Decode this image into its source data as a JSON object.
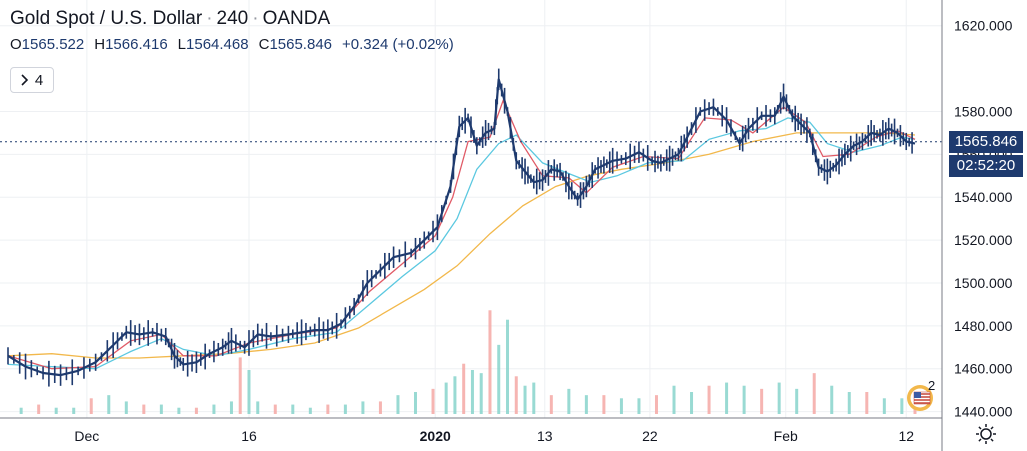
{
  "header": {
    "symbol": "Gold Spot / U.S. Dollar",
    "interval": "240",
    "source": "OANDA",
    "separator": "·"
  },
  "ohlc": {
    "open_label": "O",
    "open": "1565.522",
    "high_label": "H",
    "high": "1566.416",
    "low_label": "L",
    "low": "1564.468",
    "close_label": "C",
    "close": "1565.846",
    "change": "+0.324 (+0.02%)"
  },
  "indicators_toggle": {
    "icon": "chevron-right-icon",
    "count": "4"
  },
  "price_axis": {
    "ticks": [
      "1620.000",
      "1580.000",
      "1560.000",
      "1540.000",
      "1520.000",
      "1500.000",
      "1480.000",
      "1460.000",
      "1440.000"
    ],
    "current_price": "1565.846",
    "countdown": "02:52:20"
  },
  "time_axis": {
    "ticks": [
      "Dec",
      "16",
      "2020",
      "13",
      "22",
      "Feb",
      "12"
    ]
  },
  "events_badge": {
    "count": "2",
    "icon": "us-flag-icon"
  },
  "colors": {
    "candle": "#1e3a6e",
    "ma_fast": "#e05a66",
    "ma_mid": "#5bc8e0",
    "ma_slow": "#f2b84b",
    "volume_up": "#7fd1c8",
    "volume_down": "#f4a39f",
    "price_tag": "#1e3a6e",
    "grid": "#eef0f3"
  },
  "chart_data": {
    "type": "line",
    "chart_type_detail": "candlestick with moving averages and volume",
    "ylim": [
      1437,
      1632
    ],
    "y_ticks": [
      1620,
      1580,
      1560,
      1540,
      1520,
      1500,
      1480,
      1460,
      1440
    ],
    "x_tick_labels": [
      "Dec",
      "16",
      "2020",
      "13",
      "22",
      "Feb",
      "12"
    ],
    "x_tick_index": [
      36,
      110,
      195,
      245,
      293,
      355,
      410
    ],
    "current_price": 1565.846,
    "grid": true,
    "candles_close": [
      [
        0,
        1466
      ],
      [
        8,
        1461
      ],
      [
        16,
        1458
      ],
      [
        24,
        1457
      ],
      [
        32,
        1459
      ],
      [
        40,
        1463
      ],
      [
        48,
        1471
      ],
      [
        54,
        1477
      ],
      [
        60,
        1476
      ],
      [
        66,
        1477
      ],
      [
        72,
        1475
      ],
      [
        76,
        1466
      ],
      [
        80,
        1462
      ],
      [
        86,
        1463
      ],
      [
        92,
        1467
      ],
      [
        98,
        1470
      ],
      [
        102,
        1473
      ],
      [
        108,
        1470
      ],
      [
        114,
        1476
      ],
      [
        120,
        1475
      ],
      [
        128,
        1476
      ],
      [
        134,
        1477
      ],
      [
        140,
        1478
      ],
      [
        146,
        1478
      ],
      [
        152,
        1481
      ],
      [
        158,
        1489
      ],
      [
        164,
        1500
      ],
      [
        170,
        1506
      ],
      [
        176,
        1512
      ],
      [
        184,
        1514
      ],
      [
        190,
        1520
      ],
      [
        196,
        1526
      ],
      [
        202,
        1545
      ],
      [
        206,
        1573
      ],
      [
        210,
        1577
      ],
      [
        214,
        1564
      ],
      [
        218,
        1570
      ],
      [
        222,
        1572
      ],
      [
        224,
        1595
      ],
      [
        228,
        1580
      ],
      [
        232,
        1557
      ],
      [
        236,
        1552
      ],
      [
        240,
        1547
      ],
      [
        244,
        1548
      ],
      [
        248,
        1553
      ],
      [
        252,
        1552
      ],
      [
        256,
        1545
      ],
      [
        260,
        1539
      ],
      [
        264,
        1545
      ],
      [
        268,
        1553
      ],
      [
        272,
        1555
      ],
      [
        276,
        1557
      ],
      [
        282,
        1558
      ],
      [
        288,
        1561
      ],
      [
        294,
        1557
      ],
      [
        298,
        1556
      ],
      [
        302,
        1558
      ],
      [
        306,
        1560
      ],
      [
        310,
        1568
      ],
      [
        316,
        1580
      ],
      [
        322,
        1582
      ],
      [
        328,
        1576
      ],
      [
        334,
        1565
      ],
      [
        338,
        1572
      ],
      [
        344,
        1578
      ],
      [
        350,
        1578
      ],
      [
        354,
        1587
      ],
      [
        358,
        1578
      ],
      [
        362,
        1574
      ],
      [
        366,
        1570
      ],
      [
        370,
        1554
      ],
      [
        374,
        1552
      ],
      [
        378,
        1555
      ],
      [
        382,
        1560
      ],
      [
        386,
        1564
      ],
      [
        390,
        1566
      ],
      [
        394,
        1570
      ],
      [
        398,
        1569
      ],
      [
        402,
        1572
      ],
      [
        406,
        1570
      ],
      [
        410,
        1566
      ],
      [
        414,
        1565
      ]
    ],
    "ma_fast": [
      [
        0,
        1466
      ],
      [
        20,
        1460
      ],
      [
        40,
        1461
      ],
      [
        56,
        1473
      ],
      [
        70,
        1476
      ],
      [
        80,
        1466
      ],
      [
        95,
        1466
      ],
      [
        110,
        1472
      ],
      [
        130,
        1476
      ],
      [
        150,
        1479
      ],
      [
        165,
        1496
      ],
      [
        180,
        1509
      ],
      [
        195,
        1522
      ],
      [
        203,
        1540
      ],
      [
        210,
        1566
      ],
      [
        220,
        1568
      ],
      [
        226,
        1585
      ],
      [
        234,
        1566
      ],
      [
        244,
        1550
      ],
      [
        256,
        1549
      ],
      [
        264,
        1542
      ],
      [
        276,
        1554
      ],
      [
        290,
        1559
      ],
      [
        306,
        1558
      ],
      [
        318,
        1577
      ],
      [
        330,
        1576
      ],
      [
        340,
        1570
      ],
      [
        354,
        1582
      ],
      [
        364,
        1575
      ],
      [
        372,
        1559
      ],
      [
        384,
        1560
      ],
      [
        396,
        1568
      ],
      [
        406,
        1571
      ],
      [
        414,
        1567
      ]
    ],
    "ma_mid": [
      [
        0,
        1462
      ],
      [
        20,
        1461
      ],
      [
        40,
        1460
      ],
      [
        56,
        1468
      ],
      [
        70,
        1474
      ],
      [
        80,
        1469
      ],
      [
        95,
        1466
      ],
      [
        110,
        1469
      ],
      [
        130,
        1474
      ],
      [
        150,
        1477
      ],
      [
        165,
        1490
      ],
      [
        180,
        1503
      ],
      [
        195,
        1515
      ],
      [
        205,
        1530
      ],
      [
        214,
        1553
      ],
      [
        224,
        1565
      ],
      [
        232,
        1569
      ],
      [
        244,
        1556
      ],
      [
        256,
        1551
      ],
      [
        266,
        1547
      ],
      [
        278,
        1550
      ],
      [
        292,
        1556
      ],
      [
        308,
        1557
      ],
      [
        320,
        1567
      ],
      [
        334,
        1571
      ],
      [
        346,
        1572
      ],
      [
        356,
        1577
      ],
      [
        366,
        1575
      ],
      [
        374,
        1565
      ],
      [
        386,
        1561
      ],
      [
        398,
        1564
      ],
      [
        408,
        1568
      ],
      [
        414,
        1567
      ]
    ],
    "ma_slow": [
      [
        0,
        1466
      ],
      [
        20,
        1467
      ],
      [
        40,
        1465
      ],
      [
        60,
        1465
      ],
      [
        80,
        1466
      ],
      [
        100,
        1467
      ],
      [
        120,
        1469
      ],
      [
        140,
        1472
      ],
      [
        160,
        1479
      ],
      [
        175,
        1488
      ],
      [
        190,
        1497
      ],
      [
        205,
        1508
      ],
      [
        220,
        1523
      ],
      [
        235,
        1536
      ],
      [
        250,
        1545
      ],
      [
        265,
        1550
      ],
      [
        280,
        1553
      ],
      [
        300,
        1556
      ],
      [
        320,
        1560
      ],
      [
        340,
        1566
      ],
      [
        360,
        1570
      ],
      [
        380,
        1570
      ],
      [
        400,
        1570
      ],
      [
        414,
        1569
      ]
    ],
    "volume_bars": [
      [
        6,
        2
      ],
      [
        14,
        3
      ],
      [
        22,
        2
      ],
      [
        30,
        2
      ],
      [
        38,
        5
      ],
      [
        46,
        6
      ],
      [
        54,
        4
      ],
      [
        62,
        3
      ],
      [
        70,
        3
      ],
      [
        78,
        2
      ],
      [
        86,
        2
      ],
      [
        94,
        3
      ],
      [
        102,
        4
      ],
      [
        106,
        18
      ],
      [
        110,
        14
      ],
      [
        114,
        4
      ],
      [
        122,
        3
      ],
      [
        130,
        3
      ],
      [
        138,
        2
      ],
      [
        146,
        3
      ],
      [
        154,
        3
      ],
      [
        162,
        4
      ],
      [
        170,
        4
      ],
      [
        178,
        6
      ],
      [
        186,
        7
      ],
      [
        194,
        8
      ],
      [
        200,
        10
      ],
      [
        204,
        12
      ],
      [
        208,
        16
      ],
      [
        212,
        14
      ],
      [
        216,
        13
      ],
      [
        220,
        33
      ],
      [
        224,
        22
      ],
      [
        228,
        30
      ],
      [
        232,
        12
      ],
      [
        236,
        9
      ],
      [
        240,
        10
      ],
      [
        248,
        6
      ],
      [
        256,
        8
      ],
      [
        264,
        6
      ],
      [
        272,
        6
      ],
      [
        280,
        5
      ],
      [
        288,
        5
      ],
      [
        296,
        6
      ],
      [
        304,
        9
      ],
      [
        312,
        7
      ],
      [
        320,
        9
      ],
      [
        328,
        10
      ],
      [
        336,
        9
      ],
      [
        344,
        8
      ],
      [
        352,
        10
      ],
      [
        360,
        8
      ],
      [
        368,
        13
      ],
      [
        376,
        9
      ],
      [
        384,
        7
      ],
      [
        392,
        7
      ],
      [
        400,
        5
      ],
      [
        408,
        5
      ],
      [
        414,
        4
      ]
    ],
    "volume_max": 35
  }
}
